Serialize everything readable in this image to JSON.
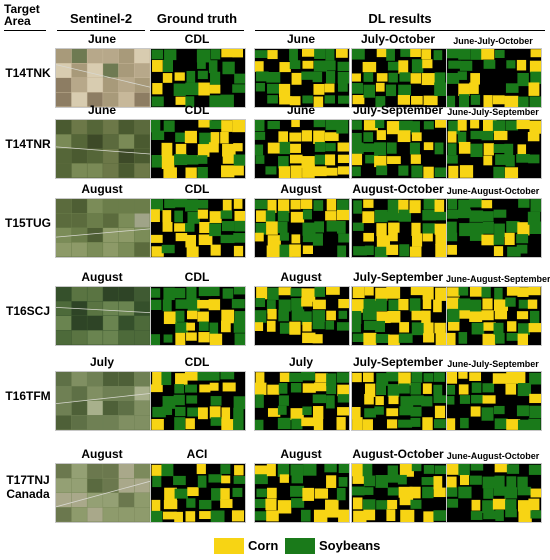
{
  "headers": {
    "target_area": "Target Area",
    "sentinel": "Sentinel-2",
    "ground_truth": "Ground truth",
    "dl_results": "DL results"
  },
  "colors": {
    "corn": "#f7d414",
    "soybeans": "#1a7a1a",
    "background": "#000000"
  },
  "rows": [
    {
      "area": "T14TNK",
      "captions": [
        "June",
        "CDL",
        "June",
        "July-October",
        "June-July-October"
      ]
    },
    {
      "area": "T14TNR",
      "captions": [
        "June",
        "CDL",
        "June",
        "July-September",
        "June-July-September"
      ]
    },
    {
      "area": "T15TUG",
      "captions": [
        "August",
        "CDL",
        "August",
        "August-October",
        "June-August-October"
      ]
    },
    {
      "area": "T16SCJ",
      "captions": [
        "August",
        "CDL",
        "August",
        "July-September",
        "June-August-September"
      ]
    },
    {
      "area": "T16TFM",
      "captions": [
        "July",
        "CDL",
        "July",
        "July-September",
        "June-July-September"
      ]
    },
    {
      "area": "T17TNJ Canada",
      "captions": [
        "August",
        "ACI",
        "August",
        "August-October",
        "June-August-October"
      ]
    }
  ],
  "legend": [
    {
      "label": "Corn",
      "color": "#f7d414"
    },
    {
      "label": "Soybeans",
      "color": "#1a7a1a"
    }
  ]
}
